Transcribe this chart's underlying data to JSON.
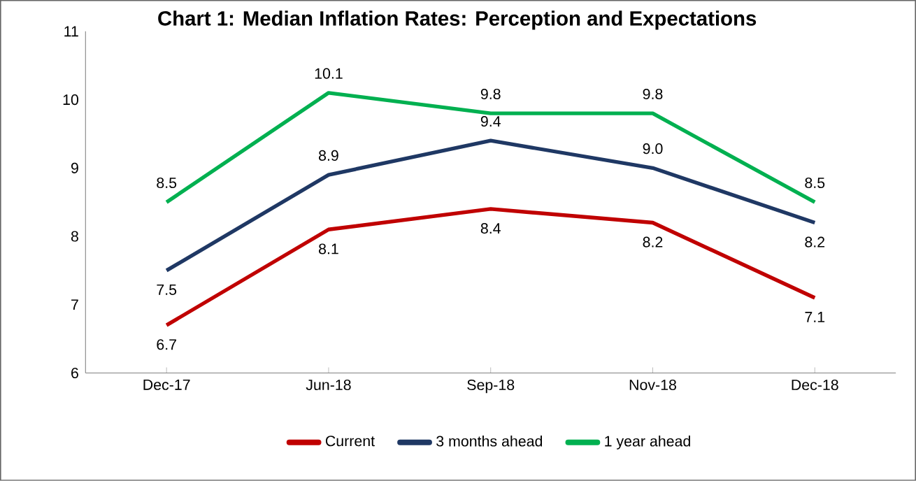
{
  "chart_data": {
    "type": "line",
    "title": "Chart 1: Median Inflation Rates: Perception and Expectations",
    "categories": [
      "Dec-17",
      "Jun-18",
      "Sep-18",
      "Nov-18",
      "Dec-18"
    ],
    "series": [
      {
        "name": "Current",
        "color": "#c00000",
        "values": [
          6.7,
          8.1,
          8.4,
          8.2,
          7.1
        ],
        "value_labels": [
          "6.7",
          "8.1",
          "8.4",
          "8.2",
          "7.1"
        ]
      },
      {
        "name": "3 months ahead",
        "color": "#1f3864",
        "values": [
          7.5,
          8.9,
          9.4,
          9.0,
          8.2
        ],
        "value_labels": [
          "7.5",
          "8.9",
          "9.4",
          "9.0",
          "8.2"
        ]
      },
      {
        "name": "1 year ahead",
        "color": "#00b050",
        "values": [
          8.5,
          10.1,
          9.8,
          9.8,
          8.5
        ],
        "value_labels": [
          "8.5",
          "10.1",
          "9.8",
          "9.8",
          "8.5"
        ]
      }
    ],
    "ylim": [
      6,
      11
    ],
    "yticks": [
      6,
      7,
      8,
      9,
      10,
      11
    ],
    "legend": "bottom",
    "grid": false,
    "marker": "none",
    "line_style": "solid"
  }
}
